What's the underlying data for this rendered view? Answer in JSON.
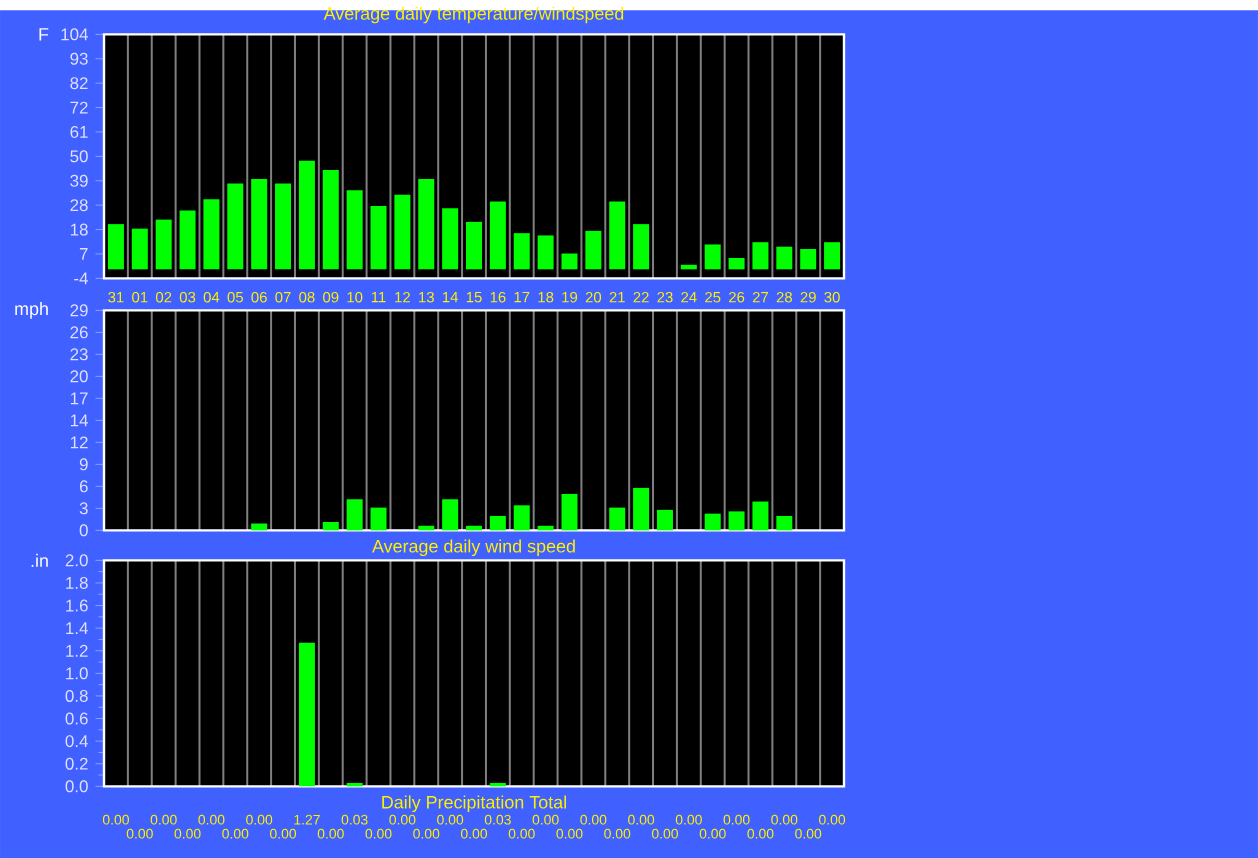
{
  "chart_data": [
    {
      "type": "bar",
      "title": "Average daily temperature/windspeed",
      "ylabel": "F",
      "categories": [
        "31",
        "01",
        "02",
        "03",
        "04",
        "05",
        "06",
        "07",
        "08",
        "09",
        "10",
        "11",
        "12",
        "13",
        "14",
        "15",
        "16",
        "17",
        "18",
        "19",
        "20",
        "21",
        "22",
        "23",
        "24",
        "25",
        "26",
        "27",
        "28",
        "29",
        "30"
      ],
      "values": [
        20,
        18,
        22,
        26,
        31,
        38,
        40,
        38,
        48,
        44,
        35,
        28,
        33,
        40,
        27,
        21,
        30,
        16,
        15,
        7,
        17,
        30,
        20,
        null,
        2,
        11,
        5,
        12,
        10,
        9,
        12
      ],
      "color": "#00ff00",
      "ylim": [
        -4,
        104
      ],
      "yticks": [
        -4,
        {
          "value": 6.8,
          "label": "7"
        },
        {
          "value": 17.6,
          "label": "18"
        },
        {
          "value": 28.4,
          "label": "28"
        },
        {
          "value": 39.2,
          "label": "39"
        },
        50,
        {
          "value": 60.8,
          "label": "61"
        },
        {
          "value": 71.6,
          "label": "72"
        },
        {
          "value": 82.4,
          "label": "82"
        },
        {
          "value": 93.2,
          "label": "93"
        },
        104
      ],
      "grid": "x"
    },
    {
      "type": "bar",
      "xlabel": "Average daily wind speed",
      "ylabel": "mph",
      "categories": [
        "31",
        "01",
        "02",
        "03",
        "04",
        "05",
        "06",
        "07",
        "08",
        "09",
        "10",
        "11",
        "12",
        "13",
        "14",
        "15",
        "16",
        "17",
        "18",
        "19",
        "20",
        "21",
        "22",
        "23",
        "24",
        "25",
        "26",
        "27",
        "28",
        "29",
        "30"
      ],
      "values": [
        0,
        0,
        0,
        0,
        0,
        0,
        0.9,
        0,
        0,
        1.1,
        4.1,
        3.0,
        0,
        0.6,
        4.1,
        0.6,
        1.9,
        3.3,
        0.6,
        4.8,
        0,
        3.0,
        5.6,
        2.7,
        0,
        2.2,
        2.5,
        3.8,
        1.9,
        0,
        0
      ],
      "color": "#00ff00",
      "ylim": [
        0,
        29
      ],
      "yticks": [
        0,
        {
          "value": 2.9,
          "label": "3"
        },
        {
          "value": 5.8,
          "label": "6"
        },
        {
          "value": 8.7,
          "label": "9"
        },
        {
          "value": 11.6,
          "label": "12"
        },
        {
          "value": 14.5,
          "label": "14"
        },
        {
          "value": 17.4,
          "label": "17"
        },
        {
          "value": 20.3,
          "label": "20"
        },
        {
          "value": 23.2,
          "label": "23"
        },
        {
          "value": 26.1,
          "label": "26"
        },
        29
      ],
      "grid": "x",
      "tick_labels": "y"
    },
    {
      "type": "bar",
      "xlabel": "Daily Precipitation Total",
      "ylabel": ".in",
      "categories": [
        "31",
        "01",
        "02",
        "03",
        "04",
        "05",
        "06",
        "07",
        "08",
        "09",
        "10",
        "11",
        "12",
        "13",
        "14",
        "15",
        "16",
        "17",
        "18",
        "19",
        "20",
        "21",
        "22",
        "23",
        "24",
        "25",
        "26",
        "27",
        "28",
        "29",
        "30"
      ],
      "values": [
        0,
        0,
        0,
        0,
        0,
        0,
        0,
        0,
        1.27,
        0,
        0.03,
        0,
        0,
        0,
        0,
        0,
        0.03,
        0,
        0,
        0,
        0,
        0,
        0,
        0,
        0,
        0,
        0,
        0,
        0,
        0,
        0
      ],
      "value_labels": [
        "0.00",
        "0.00",
        "0.00",
        "0.00",
        "0.00",
        "0.00",
        "0.00",
        "0.00",
        "1.27",
        "0.00",
        "0.03",
        "0.00",
        "0.00",
        "0.00",
        "0.00",
        "0.00",
        "0.03",
        "0.00",
        "0.00",
        "0.00",
        "0.00",
        "0.00",
        "0.00",
        "0.00",
        "0.00",
        "0.00",
        "0.00",
        "0.00",
        "0.00",
        "0.00",
        "0.00"
      ],
      "color": "#00ff00",
      "ylim": [
        0,
        2.0
      ],
      "yticks": [
        {
          "value": 0,
          "label": "0.0"
        },
        {
          "value": 0.2,
          "label": "0.2"
        },
        {
          "value": 0.4,
          "label": "0.4"
        },
        {
          "value": 0.6,
          "label": "0.6"
        },
        {
          "value": 0.8,
          "label": "0.8"
        },
        {
          "value": 1.0,
          "label": "1.0"
        },
        {
          "value": 1.2,
          "label": "1.2"
        },
        {
          "value": 1.4,
          "label": "1.4"
        },
        {
          "value": 1.6,
          "label": "1.6"
        },
        {
          "value": 1.8,
          "label": "1.8"
        },
        {
          "value": 2.0,
          "label": "2.0"
        }
      ],
      "grid": "x",
      "tick_labels": "y"
    }
  ]
}
